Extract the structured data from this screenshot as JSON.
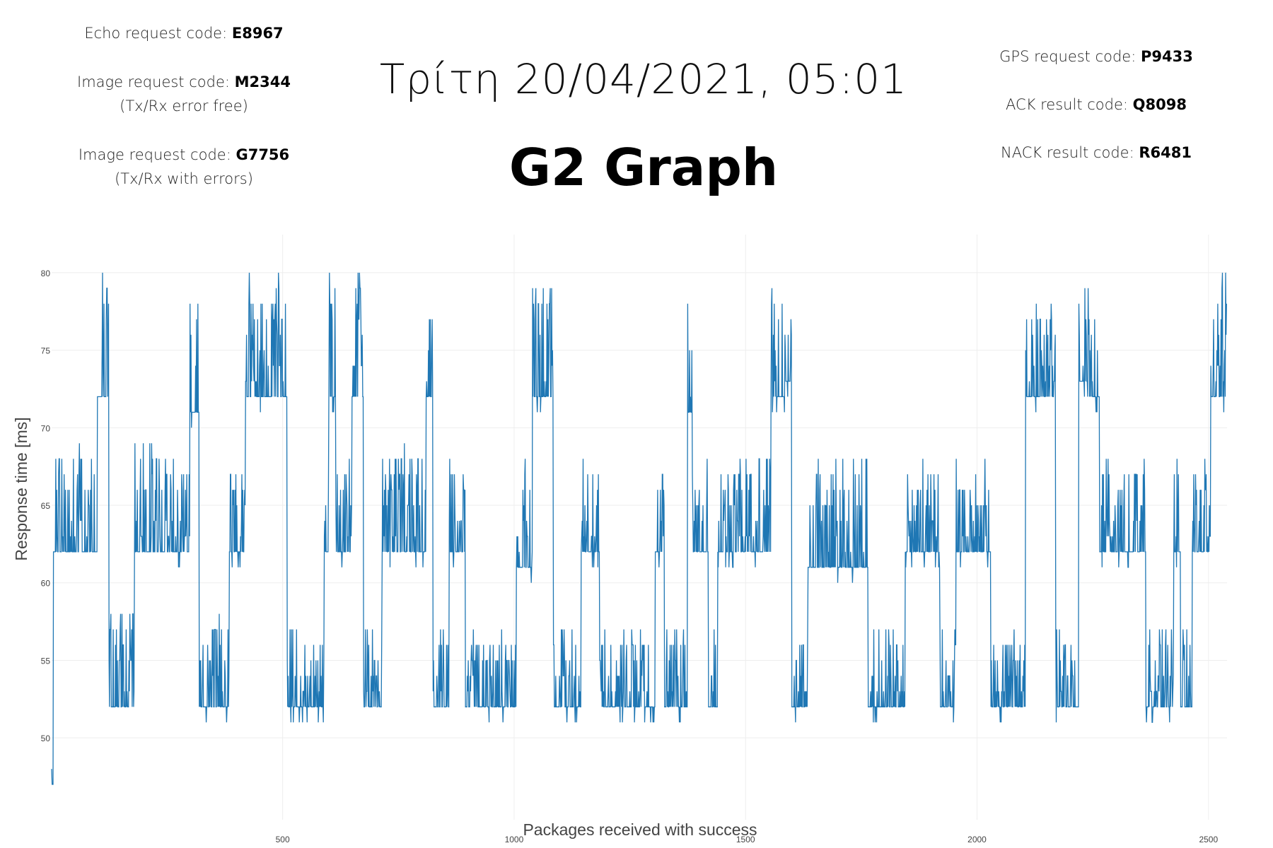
{
  "header": {
    "echo": {
      "label": "Echo request code:",
      "code": "E8967"
    },
    "image_ok": {
      "label": "Image request code:",
      "code": "M2344",
      "note": "(Tx/Rx error free)"
    },
    "image_err": {
      "label": "Image request code:",
      "code": "G7756",
      "note": "(Tx/Rx with errors)"
    },
    "gps": {
      "label": "GPS request code:",
      "code": "P9433"
    },
    "ack": {
      "label": "ACK result code:",
      "code": "Q8098"
    },
    "nack": {
      "label": "NACK result code:",
      "code": "R6481"
    },
    "date": "Τρίτη 20/04/2021, 05:01",
    "title": "G2 Graph"
  },
  "colors": {
    "line": "#1f77b4",
    "grid": "#eeeeee",
    "tick": "#444444"
  },
  "chart_data": {
    "type": "line",
    "title": "G2 Graph",
    "xlabel": "Packages received with success",
    "ylabel": "Response time [ms]",
    "xlim": [
      1,
      2540
    ],
    "ylim": [
      47,
      82
    ],
    "x_ticks": [
      500,
      1000,
      1500,
      2000,
      2500
    ],
    "y_ticks": [
      50,
      55,
      60,
      65,
      70,
      75,
      80
    ],
    "grid": true,
    "legend": "none",
    "series": [
      {
        "x_start": 1,
        "x_end": 2540,
        "segments": [
          [
            1,
            5,
            47,
            47
          ],
          [
            5,
            100,
            61,
            69
          ],
          [
            100,
            125,
            71,
            80
          ],
          [
            125,
            180,
            51,
            58
          ],
          [
            180,
            300,
            61,
            69
          ],
          [
            300,
            320,
            70,
            80
          ],
          [
            320,
            385,
            51,
            58
          ],
          [
            385,
            420,
            61,
            68
          ],
          [
            420,
            510,
            71,
            80
          ],
          [
            510,
            590,
            51,
            57
          ],
          [
            590,
            600,
            61,
            68
          ],
          [
            600,
            615,
            71,
            80
          ],
          [
            615,
            650,
            61,
            68
          ],
          [
            650,
            675,
            71,
            80
          ],
          [
            675,
            715,
            51,
            58
          ],
          [
            715,
            810,
            61,
            69
          ],
          [
            810,
            825,
            71,
            79
          ],
          [
            825,
            860,
            51,
            57
          ],
          [
            860,
            895,
            61,
            68
          ],
          [
            895,
            1005,
            51,
            57
          ],
          [
            1005,
            1040,
            60,
            68
          ],
          [
            1040,
            1085,
            71,
            79
          ],
          [
            1085,
            1145,
            51,
            57
          ],
          [
            1145,
            1185,
            61,
            68
          ],
          [
            1185,
            1305,
            51,
            57
          ],
          [
            1305,
            1325,
            61,
            68
          ],
          [
            1325,
            1375,
            51,
            57
          ],
          [
            1375,
            1385,
            70,
            79
          ],
          [
            1385,
            1420,
            61,
            68
          ],
          [
            1420,
            1440,
            51,
            57
          ],
          [
            1440,
            1555,
            61,
            68
          ],
          [
            1555,
            1585,
            71,
            79
          ],
          [
            1585,
            1600,
            72,
            80
          ],
          [
            1600,
            1635,
            51,
            57
          ],
          [
            1635,
            1765,
            60,
            68
          ],
          [
            1765,
            1845,
            51,
            57
          ],
          [
            1845,
            1920,
            61,
            68
          ],
          [
            1920,
            1955,
            51,
            57
          ],
          [
            1955,
            2030,
            61,
            68
          ],
          [
            2030,
            2105,
            51,
            57
          ],
          [
            2105,
            2170,
            71,
            79
          ],
          [
            2170,
            2220,
            51,
            57
          ],
          [
            2220,
            2240,
            72,
            80
          ],
          [
            2240,
            2265,
            71,
            79
          ],
          [
            2265,
            2365,
            61,
            68
          ],
          [
            2365,
            2425,
            51,
            57
          ],
          [
            2425,
            2440,
            61,
            68
          ],
          [
            2440,
            2465,
            51,
            57
          ],
          [
            2465,
            2505,
            61,
            68
          ],
          [
            2505,
            2540,
            71,
            80
          ]
        ]
      }
    ]
  }
}
